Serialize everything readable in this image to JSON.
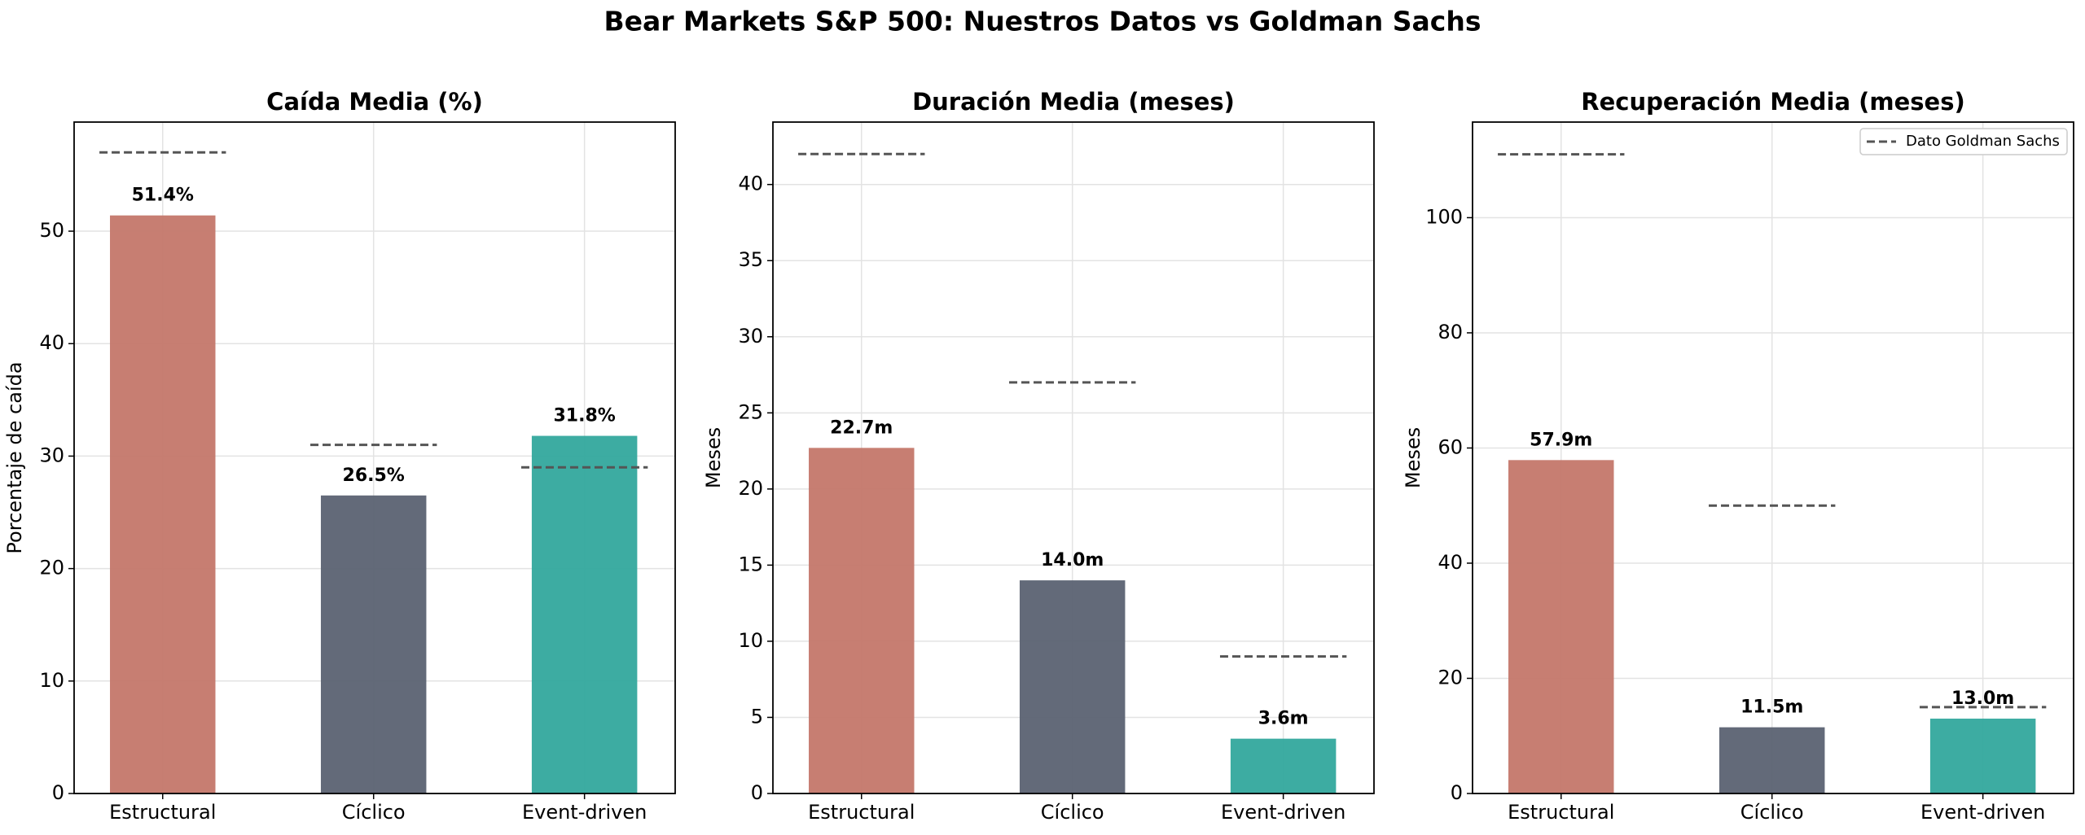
{
  "title": "Bear Markets S&P 500: Nuestros Datos vs Goldman Sachs",
  "chart_data": [
    {
      "type": "bar",
      "title": "Caída Media (%)",
      "ylabel": "Porcentaje de caída",
      "categories": [
        "Estructural",
        "Cíclico",
        "Event-driven"
      ],
      "values": [
        51.4,
        26.5,
        31.8
      ],
      "value_labels": [
        "51.4%",
        "26.5%",
        "31.8%"
      ],
      "colors": [
        "#c4776a",
        "#5b6272",
        "#33a89d"
      ],
      "reference": {
        "values": [
          57,
          31,
          29
        ],
        "color": "#555555"
      },
      "ylim": [
        0,
        59.7
      ],
      "yticks": [
        0,
        10,
        20,
        30,
        40,
        50
      ],
      "grid": true
    },
    {
      "type": "bar",
      "title": "Duración Media (meses)",
      "ylabel": "Meses",
      "categories": [
        "Estructural",
        "Cíclico",
        "Event-driven"
      ],
      "values": [
        22.7,
        14.0,
        3.6
      ],
      "value_labels": [
        "22.7m",
        "14.0m",
        "3.6m"
      ],
      "colors": [
        "#c4776a",
        "#5b6272",
        "#33a89d"
      ],
      "reference": {
        "values": [
          42,
          27,
          9
        ],
        "color": "#555555"
      },
      "ylim": [
        0,
        44.1
      ],
      "yticks": [
        0,
        5,
        10,
        15,
        20,
        25,
        30,
        35,
        40
      ],
      "grid": true
    },
    {
      "type": "bar",
      "title": "Recuperación Media (meses)",
      "ylabel": "Meses",
      "categories": [
        "Estructural",
        "Cíclico",
        "Event-driven"
      ],
      "values": [
        57.9,
        11.5,
        13.0
      ],
      "value_labels": [
        "57.9m",
        "11.5m",
        "13.0m"
      ],
      "colors": [
        "#c4776a",
        "#5b6272",
        "#33a89d"
      ],
      "reference": {
        "name": "Dato Goldman Sachs",
        "values": [
          111,
          50,
          15
        ],
        "color": "#555555"
      },
      "legend": "upper right",
      "ylim": [
        0,
        116.6
      ],
      "yticks": [
        0,
        20,
        40,
        60,
        80,
        100
      ],
      "grid": true
    }
  ]
}
